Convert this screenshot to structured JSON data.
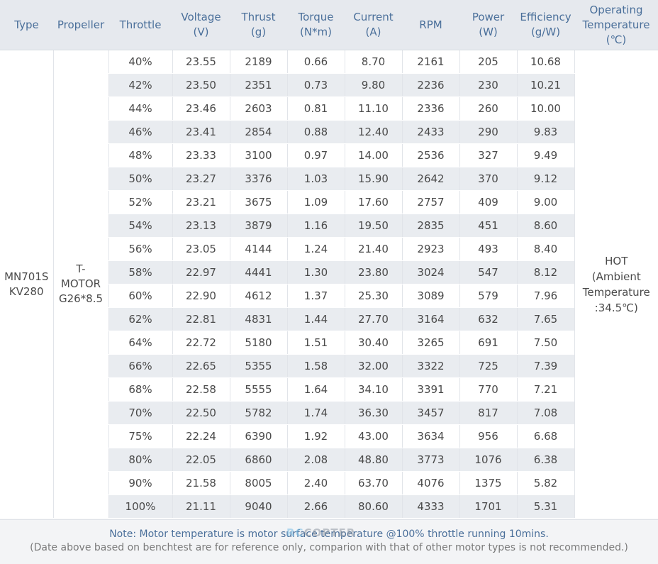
{
  "headers": [
    {
      "l1": "Type",
      "l2": ""
    },
    {
      "l1": "Propeller",
      "l2": ""
    },
    {
      "l1": "Throttle",
      "l2": ""
    },
    {
      "l1": "Voltage",
      "l2": "(V)"
    },
    {
      "l1": "Thrust",
      "l2": "(g)"
    },
    {
      "l1": "Torque",
      "l2": "(N*m)"
    },
    {
      "l1": "Current",
      "l2": "(A)"
    },
    {
      "l1": "RPM",
      "l2": ""
    },
    {
      "l1": "Power",
      "l2": "(W)"
    },
    {
      "l1": "Efficiency",
      "l2": "(g/W)"
    },
    {
      "l1": "Operating",
      "l2": "Temperature",
      "l3": "(℃)"
    }
  ],
  "type_label": [
    "MN701S",
    "KV280"
  ],
  "propeller_label": [
    "T-",
    "MOTOR",
    "G26*8.5"
  ],
  "temperature_label": [
    "HOT",
    "(Ambient",
    "Temperature",
    ":34.5℃)"
  ],
  "rows": [
    [
      "40%",
      "23.55",
      "2189",
      "0.66",
      "8.70",
      "2161",
      "205",
      "10.68"
    ],
    [
      "42%",
      "23.50",
      "2351",
      "0.73",
      "9.80",
      "2236",
      "230",
      "10.21"
    ],
    [
      "44%",
      "23.46",
      "2603",
      "0.81",
      "11.10",
      "2336",
      "260",
      "10.00"
    ],
    [
      "46%",
      "23.41",
      "2854",
      "0.88",
      "12.40",
      "2433",
      "290",
      "9.83"
    ],
    [
      "48%",
      "23.33",
      "3100",
      "0.97",
      "14.00",
      "2536",
      "327",
      "9.49"
    ],
    [
      "50%",
      "23.27",
      "3376",
      "1.03",
      "15.90",
      "2642",
      "370",
      "9.12"
    ],
    [
      "52%",
      "23.21",
      "3675",
      "1.09",
      "17.60",
      "2757",
      "409",
      "9.00"
    ],
    [
      "54%",
      "23.13",
      "3879",
      "1.16",
      "19.50",
      "2835",
      "451",
      "8.60"
    ],
    [
      "56%",
      "23.05",
      "4144",
      "1.24",
      "21.40",
      "2923",
      "493",
      "8.40"
    ],
    [
      "58%",
      "22.97",
      "4441",
      "1.30",
      "23.80",
      "3024",
      "547",
      "8.12"
    ],
    [
      "60%",
      "22.90",
      "4612",
      "1.37",
      "25.30",
      "3089",
      "579",
      "7.96"
    ],
    [
      "62%",
      "22.81",
      "4831",
      "1.44",
      "27.70",
      "3164",
      "632",
      "7.65"
    ],
    [
      "64%",
      "22.72",
      "5180",
      "1.51",
      "30.40",
      "3265",
      "691",
      "7.50"
    ],
    [
      "66%",
      "22.65",
      "5355",
      "1.58",
      "32.00",
      "3322",
      "725",
      "7.39"
    ],
    [
      "68%",
      "22.58",
      "5555",
      "1.64",
      "34.10",
      "3391",
      "770",
      "7.21"
    ],
    [
      "70%",
      "22.50",
      "5782",
      "1.74",
      "36.30",
      "3457",
      "817",
      "7.08"
    ],
    [
      "75%",
      "22.24",
      "6390",
      "1.92",
      "43.00",
      "3634",
      "956",
      "6.68"
    ],
    [
      "80%",
      "22.05",
      "6860",
      "2.08",
      "48.80",
      "3773",
      "1076",
      "6.38"
    ],
    [
      "90%",
      "21.58",
      "8005",
      "2.40",
      "63.70",
      "4076",
      "1375",
      "5.82"
    ],
    [
      "100%",
      "21.11",
      "9040",
      "2.66",
      "80.60",
      "4333",
      "1701",
      "5.31"
    ]
  ],
  "footer": {
    "note": "Note: Motor temperature is motor surface temperature @100% throttle running 10mins.",
    "disclaimer": "(Date above based on benchtest are for reference only, comparion with that of other motor types is not recommended.)"
  },
  "watermark": {
    "part1": "RC",
    "part2": "COPTER"
  },
  "colors": {
    "header_text": "#4a6f9a",
    "header_bg": "#e6e9ee",
    "stripe": "#e9ecf0"
  }
}
